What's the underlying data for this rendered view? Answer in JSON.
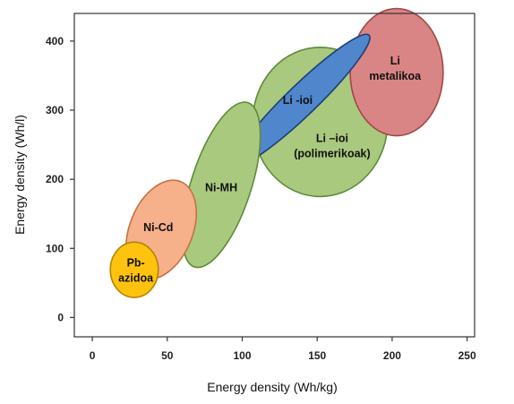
{
  "chart_data": {
    "type": "scatter",
    "title": "",
    "xlabel": "Energy density (Wh/kg)",
    "ylabel": "Energy density (Wh/l)",
    "xlim": [
      -12,
      255
    ],
    "ylim": [
      -28,
      440
    ],
    "x_ticks": [
      "0",
      "50",
      "100",
      "150",
      "200",
      "250"
    ],
    "x_tick_values": [
      0,
      50,
      100,
      150,
      200,
      250
    ],
    "y_ticks": [
      "0",
      "100",
      "200",
      "300",
      "400"
    ],
    "y_tick_values": [
      0,
      100,
      200,
      300,
      400
    ],
    "grid": false,
    "legend": "none",
    "regions": [
      {
        "name": "Li-ion (polymer) region",
        "lines": [
          "Li –ioi",
          "(polimerikoak)"
        ],
        "cx": 152,
        "cy": 283,
        "rx": 45,
        "ry": 108,
        "angle": 0,
        "fill": "#a9c97f",
        "stroke": "#5f8a3a",
        "label_x": 160,
        "label_y": 248,
        "label_dark": true
      },
      {
        "name": "Li metal region",
        "lines": [
          "Li",
          "metalikoa"
        ],
        "cx": 203,
        "cy": 355,
        "rx": 31,
        "ry": 92,
        "angle": 0,
        "fill": "#d98585",
        "stroke": "#a04747",
        "label_x": 202,
        "label_y": 360
      },
      {
        "name": "Li-ion region",
        "lines": [
          "Li -ioi"
        ],
        "cx": 140,
        "cy": 315,
        "rx": 62,
        "ry": 22,
        "angle": -44,
        "fill": "#4f86cc",
        "stroke": "#1f3f74",
        "label_x": 137,
        "label_y": 314
      },
      {
        "name": "Ni-MH region",
        "lines": [
          "Ni-MH"
        ],
        "cx": 86,
        "cy": 192,
        "rx": 20,
        "ry": 125,
        "angle": 18,
        "fill": "#a9c97f",
        "stroke": "#5f8a3a",
        "label_x": 86,
        "label_y": 188
      },
      {
        "name": "Ni-Cd region",
        "lines": [
          "Ni-Cd"
        ],
        "cx": 46,
        "cy": 127,
        "rx": 21,
        "ry": 75,
        "angle": 22,
        "fill": "#f6b08a",
        "stroke": "#c47245",
        "label_x": 44,
        "label_y": 130
      },
      {
        "name": "Pb-acid region",
        "lines": [
          "Pb-",
          "azidoa"
        ],
        "cx": 28,
        "cy": 69,
        "rx": 16,
        "ry": 40,
        "angle": 0,
        "fill": "#ffc20e",
        "stroke": "#b38400",
        "label_x": 29,
        "label_y": 68
      }
    ]
  }
}
